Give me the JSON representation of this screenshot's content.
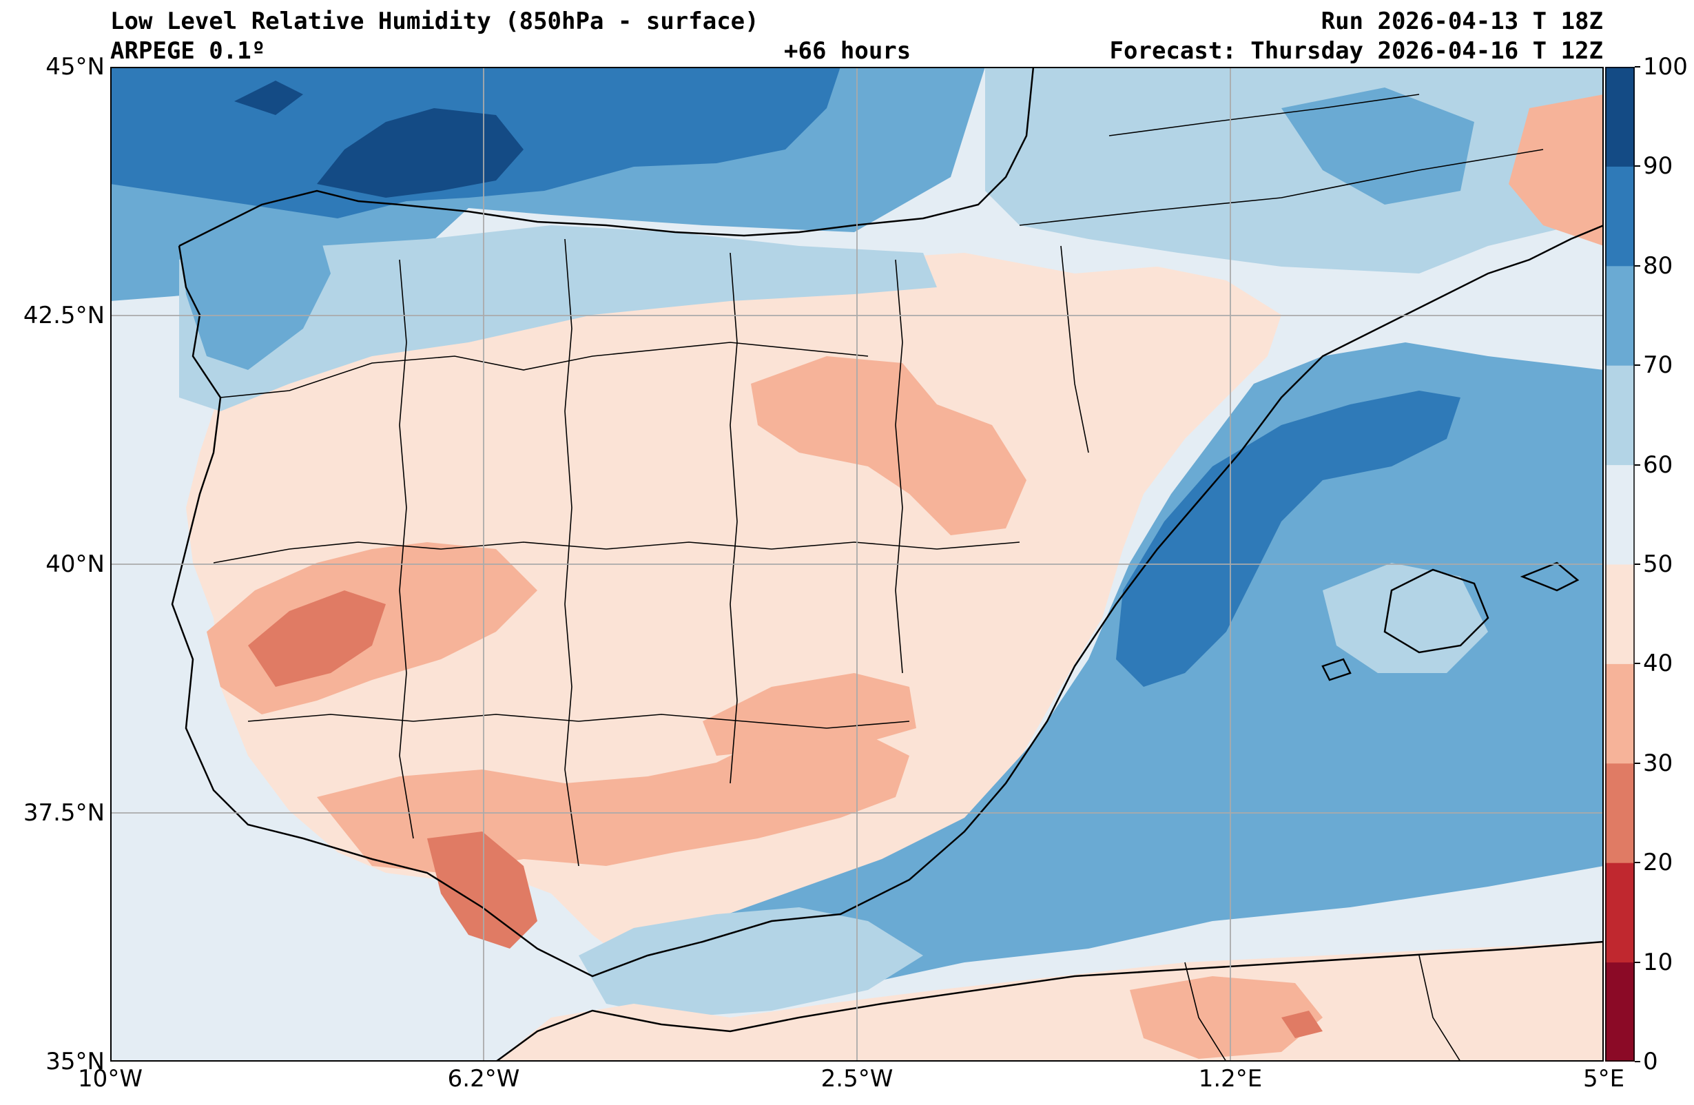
{
  "header": {
    "title_left": "Low Level Relative Humidity (850hPa - surface)",
    "model": "ARPEGE 0.1º",
    "lead_time": "+66 hours",
    "run": "Run 2026-04-13 T 18Z",
    "forecast": "Forecast: Thursday 2026-04-16 T 12Z"
  },
  "map": {
    "variable": "Low Level Relative Humidity",
    "extent": {
      "lon": [
        -10,
        5
      ],
      "lat": [
        35,
        45
      ]
    },
    "lat_labels": [
      "35°N",
      "37.5°N",
      "40°N",
      "42.5°N",
      "45°N"
    ],
    "lat_values": [
      35,
      37.5,
      40,
      42.5,
      45
    ],
    "lon_labels": [
      "10°W",
      "6.2°W",
      "2.5°W",
      "1.2°E",
      "5°E"
    ],
    "lon_values": [
      -10,
      -6.25,
      -2.5,
      1.25,
      5
    ],
    "grid": true
  },
  "colorbar": {
    "levels": [
      0,
      10,
      20,
      30,
      40,
      50,
      60,
      70,
      80,
      90,
      100
    ],
    "labels": [
      "0",
      "10",
      "20",
      "30",
      "40",
      "50",
      "60",
      "70",
      "80",
      "90",
      "100"
    ],
    "colors": [
      "#8b0a26",
      "#c0282f",
      "#e07b64",
      "#f6b399",
      "#fbe3d6",
      "#e4edf4",
      "#b3d4e6",
      "#6aaad3",
      "#2f7ab8",
      "#144b85"
    ]
  }
}
